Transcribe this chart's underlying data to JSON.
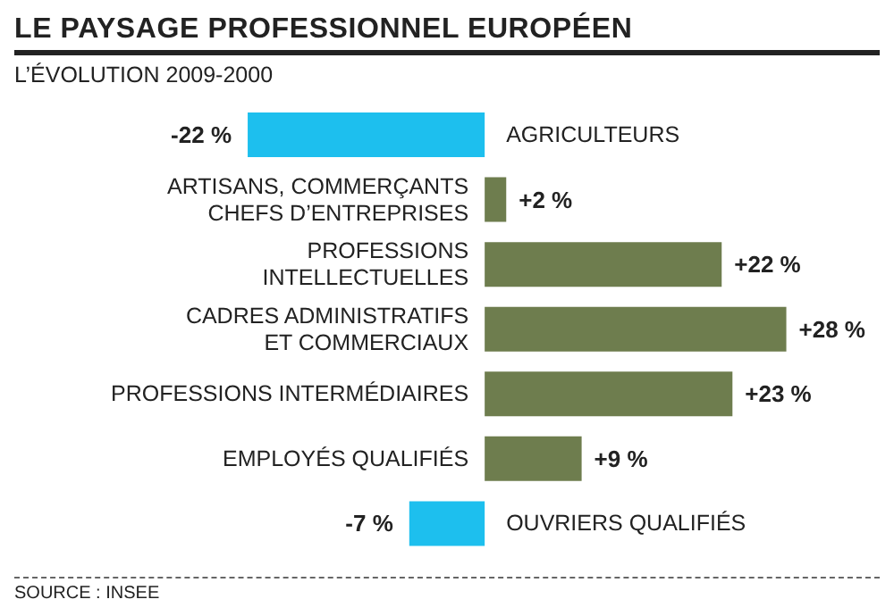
{
  "chart_data": {
    "type": "bar",
    "orientation": "horizontal",
    "title": "LE PAYSAGE PROFESSIONNEL EUROPÉEN",
    "subtitle": "L’ÉVOLUTION 2009-2000",
    "categories": [
      "AGRICULTEURS",
      "ARTISANS, COMMERÇANTS\nCHEFS D’ENTREPRISES",
      "PROFESSIONS\nINTELLECTUELLES",
      "CADRES ADMINISTRATIFS\nET COMMERCIAUX",
      "PROFESSIONS INTERMÉDIAIRES",
      "EMPLOYÉS QUALIFIÉS",
      "OUVRIERS QUALIFIÉS"
    ],
    "values": [
      -22,
      2,
      22,
      28,
      23,
      9,
      -7
    ],
    "colors": [
      "#1dbfee",
      "#6e7d4e",
      "#6e7d4e",
      "#6e7d4e",
      "#6e7d4e",
      "#6e7d4e",
      "#1dbfee"
    ],
    "value_labels": [
      "-22 %",
      "+2 %",
      "+22 %",
      "+28 %",
      "+23 %",
      "+9 %",
      "-7 %"
    ],
    "annotations": [
      "SOURCE : INSEE"
    ]
  }
}
